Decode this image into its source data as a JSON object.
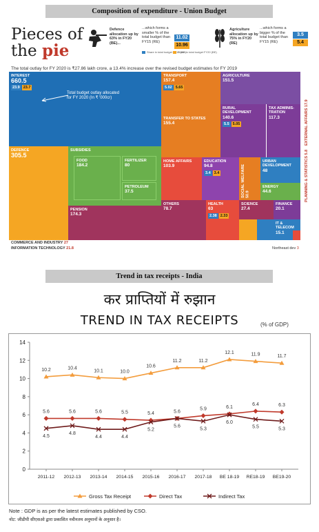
{
  "band1": "Composition of expenditure - Union Budget",
  "band2": "Trend in tax receipts - India",
  "infographic": {
    "headline1": "Pieces of",
    "headline2": "the ",
    "headline3": "pie",
    "defence_stat": "Defence allocation up by 63% in FY20 (BE)...",
    "defence_note": "...which forms a smaller % of the total budget than FY15 (RE)",
    "defence_vals": [
      "11.02",
      "10.96"
    ],
    "agri_stat": "Agriculture allocation up by 75% in FY20 (RE)",
    "agri_note": "...which forms a bigger % of the total budget than FY15 (RE)",
    "agri_vals": [
      "3.5",
      "5.4"
    ],
    "legend_a": "Share in total budget FY15 (RE)",
    "legend_b": "Share in total budget FY20 (BE)",
    "subline": "The total outlay for FY 2020 is ₹27.86 lakh crore, a 13.4% increase over the revised budget estimates for FY 2019",
    "total_label": "Total budget outlay allocated for FY 2020 (In ₹ '000cr)",
    "tiles": [
      {
        "label": "INTEREST",
        "value": "660.5",
        "a": "23.9",
        "b": "23.7",
        "color": "#1f6fb5"
      },
      {
        "label": "TRANSPORT",
        "value": "157.4",
        "a": "5.02",
        "b": "5.65",
        "color": "#e67e22"
      },
      {
        "label": "AGRICULTURE",
        "value": "151.5",
        "color": "#7b4ea3"
      },
      {
        "label": "TRANSFER TO STATES",
        "value": "155.4",
        "color": "#e67e22"
      },
      {
        "label": "RURAL DEVELOPMENT",
        "value": "140.6",
        "a": "5.5",
        "b": "5.05",
        "color": "#7d3c98"
      },
      {
        "label": "TAX ADMINIS-TRATION",
        "value": "117.3",
        "color": "#7d3c98"
      },
      {
        "label": "DEFENCE",
        "value": "305.5",
        "color": "#f5a623"
      },
      {
        "label": "SUBSIDIES",
        "value": "",
        "color": "#6ab04c"
      },
      {
        "label": "FOOD",
        "value": "184.2",
        "color": "#6ab04c"
      },
      {
        "label": "FERTILIZER",
        "value": "80",
        "color": "#6ab04c"
      },
      {
        "label": "PETROLEUM",
        "value": "37.5",
        "color": "#6ab04c"
      },
      {
        "label": "PENSION",
        "value": "174.3",
        "color": "#a0345d"
      },
      {
        "label": "HOME AFFAIRS",
        "value": "103.9",
        "color": "#e74c3c"
      },
      {
        "label": "EDUCATION",
        "value": "94.8",
        "a": "3.4",
        "b": "3.4",
        "color": "#8e44ad"
      },
      {
        "label": "SOCIAL WELFARE",
        "value": "50.9",
        "color": "#e67e22"
      },
      {
        "label": "URBAN DEVELOPMENT",
        "value": "48",
        "color": "#2f7fc1"
      },
      {
        "label": "ENERGY",
        "value": "44.6",
        "color": "#6ab04c"
      },
      {
        "label": "OTHERS",
        "value": "78.7",
        "color": "#a0345d"
      },
      {
        "label": "HEALTH",
        "value": "63",
        "a": "2.38",
        "b": "2.33",
        "color": "#e74c3c"
      },
      {
        "label": "SCIENCE",
        "value": "27.4",
        "color": "#a0345d"
      },
      {
        "label": "FINANCE",
        "value": "20.1",
        "color": "#7d3c98"
      },
      {
        "label": "IT & TELECOM",
        "value": "15.1",
        "color": "#2f7fc1"
      }
    ],
    "external": "EXTERNAL AFFAIRS 17.9",
    "planning": "PLANNING & STATISTICS 5.8",
    "commerce": "COMMERCE AND INDUSTRY",
    "commerce_val": "27",
    "infotech": "INFORMATION TECHNOLOGY",
    "infotech_val": "21.8",
    "northeast": "Northeast dev",
    "northeast_val": "3"
  },
  "chart_data": {
    "type": "line",
    "title_hindi": "कर प्राप्तियों में रुझान",
    "title": "TREND IN TAX RECEIPTS",
    "unit": "(% of GDP)",
    "categories": [
      "2011-12",
      "2012-13",
      "2013-14",
      "2014-15",
      "2015-16",
      "2016-17",
      "2017-18",
      "BE 18-19",
      "RE18-19",
      "BE19-20"
    ],
    "ylim": [
      0,
      14
    ],
    "yticks": [
      0,
      2,
      4,
      6,
      8,
      10,
      12,
      14
    ],
    "grid": false,
    "legend_position": "bottom",
    "series": [
      {
        "name": "Gross Tax Receipt",
        "color": "#f39c3c",
        "marker": "triangle",
        "values": [
          10.2,
          10.4,
          10.1,
          10.0,
          10.6,
          11.2,
          11.2,
          12.1,
          11.9,
          11.7
        ]
      },
      {
        "name": "Direct Tax",
        "color": "#c0392b",
        "marker": "diamond",
        "values": [
          5.6,
          5.6,
          5.6,
          5.5,
          5.4,
          5.6,
          5.9,
          6.1,
          6.4,
          6.3
        ]
      },
      {
        "name": "Indirect Tax",
        "color": "#6e1a1a",
        "marker": "x",
        "values": [
          4.5,
          4.8,
          4.4,
          4.4,
          5.2,
          5.6,
          5.3,
          6.0,
          5.5,
          5.3
        ]
      }
    ],
    "note": "Note : GDP is as per the latest estimates published by CSO.",
    "note_hindi": "नोट: जीडीपी सीएसओ द्वारा प्रकाशित नवीनतम अनुमानों के अनुसार है।"
  }
}
